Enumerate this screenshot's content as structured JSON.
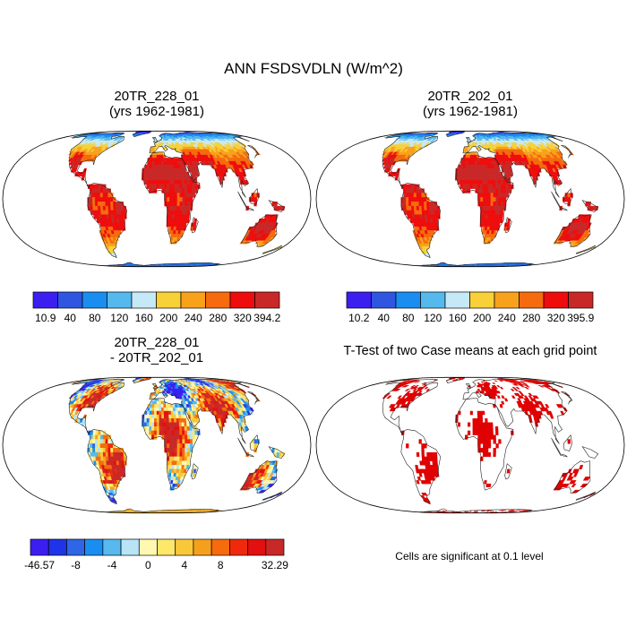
{
  "title": "ANN FSDSVDLN (W/m^2)",
  "panels": [
    {
      "id": "case1",
      "title_line1": "20TR_228_01",
      "title_line2": "(yrs 1962-1981)",
      "field": "absolute",
      "colorbar": {
        "colors": [
          "#3c1ef0",
          "#2e56e0",
          "#1a8ef0",
          "#55b9ee",
          "#c6e9f7",
          "#f8d038",
          "#f8a21c",
          "#f56b0d",
          "#ef0c0c",
          "#c82827"
        ],
        "labels": [
          "10.9",
          "40",
          "80",
          "120",
          "160",
          "200",
          "240",
          "280",
          "320",
          "394.2"
        ]
      }
    },
    {
      "id": "case2",
      "title_line1": "20TR_202_01",
      "title_line2": "(yrs 1962-1981)",
      "field": "absolute",
      "colorbar": {
        "colors": [
          "#3c1ef0",
          "#2e56e0",
          "#1a8ef0",
          "#55b9ee",
          "#c6e9f7",
          "#f8d038",
          "#f8a21c",
          "#f56b0d",
          "#ef0c0c",
          "#c82827"
        ],
        "labels": [
          "10.2",
          "40",
          "80",
          "120",
          "160",
          "200",
          "240",
          "280",
          "320",
          "395.9"
        ]
      }
    },
    {
      "id": "diff",
      "title_line1": "20TR_228_01",
      "title_line2": "- 20TR_202_01",
      "field": "difference",
      "colorbar": {
        "colors": [
          "#3c1ef0",
          "#1f33e8",
          "#2f66e6",
          "#1a8ef0",
          "#57b9ee",
          "#b8e4f6",
          "#fff8b0",
          "#fde86a",
          "#f8c83a",
          "#f5a01c",
          "#f56b0d",
          "#ef2a0c",
          "#e2100f",
          "#c82827"
        ],
        "labels": [
          "-46.57",
          "",
          "-8",
          "",
          "-4",
          "",
          "0",
          "",
          "4",
          "",
          "8",
          "",
          "",
          "32.29"
        ]
      }
    },
    {
      "id": "ttest",
      "title_line1": "T-Test of two Case means at each grid point",
      "title_line2": "",
      "field": "significance",
      "note": "Cells are significant at 0.1 level",
      "highlight_color": "#e00000"
    }
  ]
}
